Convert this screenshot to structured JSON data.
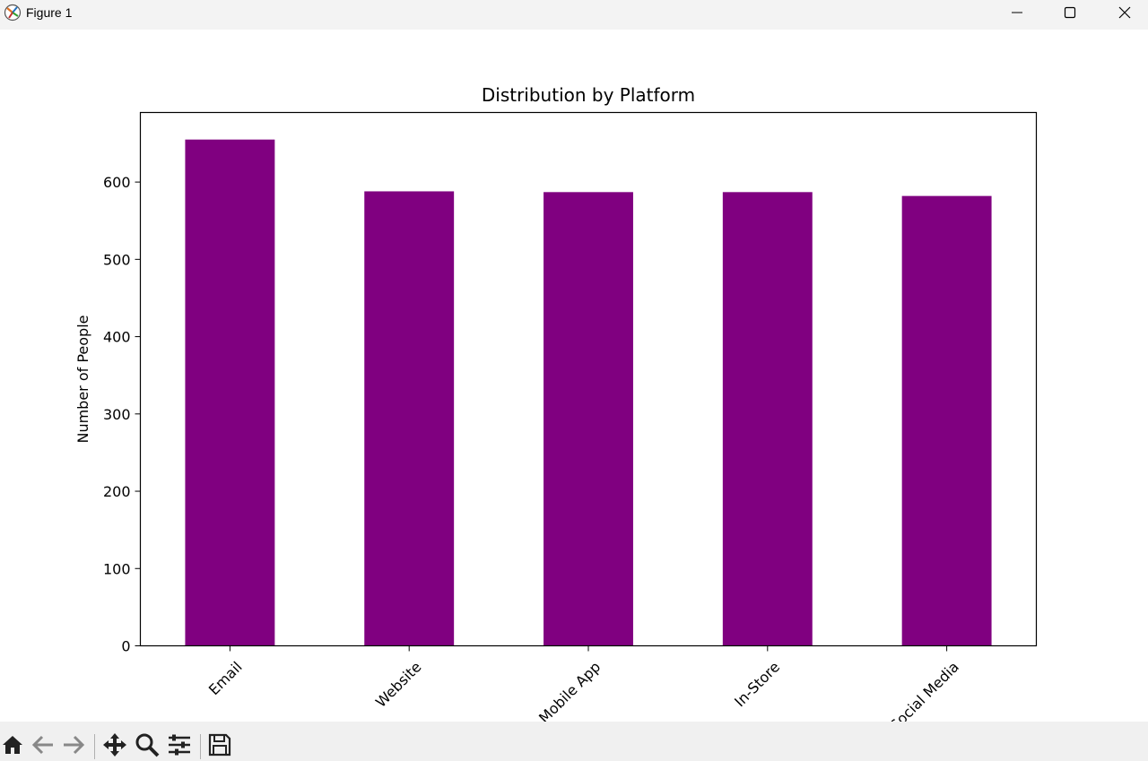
{
  "window": {
    "title": "Figure 1"
  },
  "chart_data": {
    "type": "bar",
    "title": "Distribution by Platform",
    "xlabel": "",
    "ylabel": "Number of People",
    "categories": [
      "Email",
      "Website",
      "Mobile App",
      "In-Store",
      "Social Media"
    ],
    "values": [
      655,
      588,
      587,
      587,
      582
    ],
    "ylim": [
      0,
      690
    ],
    "yticks": [
      0,
      100,
      200,
      300,
      400,
      500,
      600
    ],
    "bar_color": "#800080",
    "grid": false,
    "xtick_rotation": 45
  },
  "toolbar": {
    "icons": [
      "home-icon",
      "back-arrow-icon",
      "forward-arrow-icon",
      "pan-icon",
      "zoom-icon",
      "configure-subplots-icon",
      "save-icon"
    ]
  }
}
